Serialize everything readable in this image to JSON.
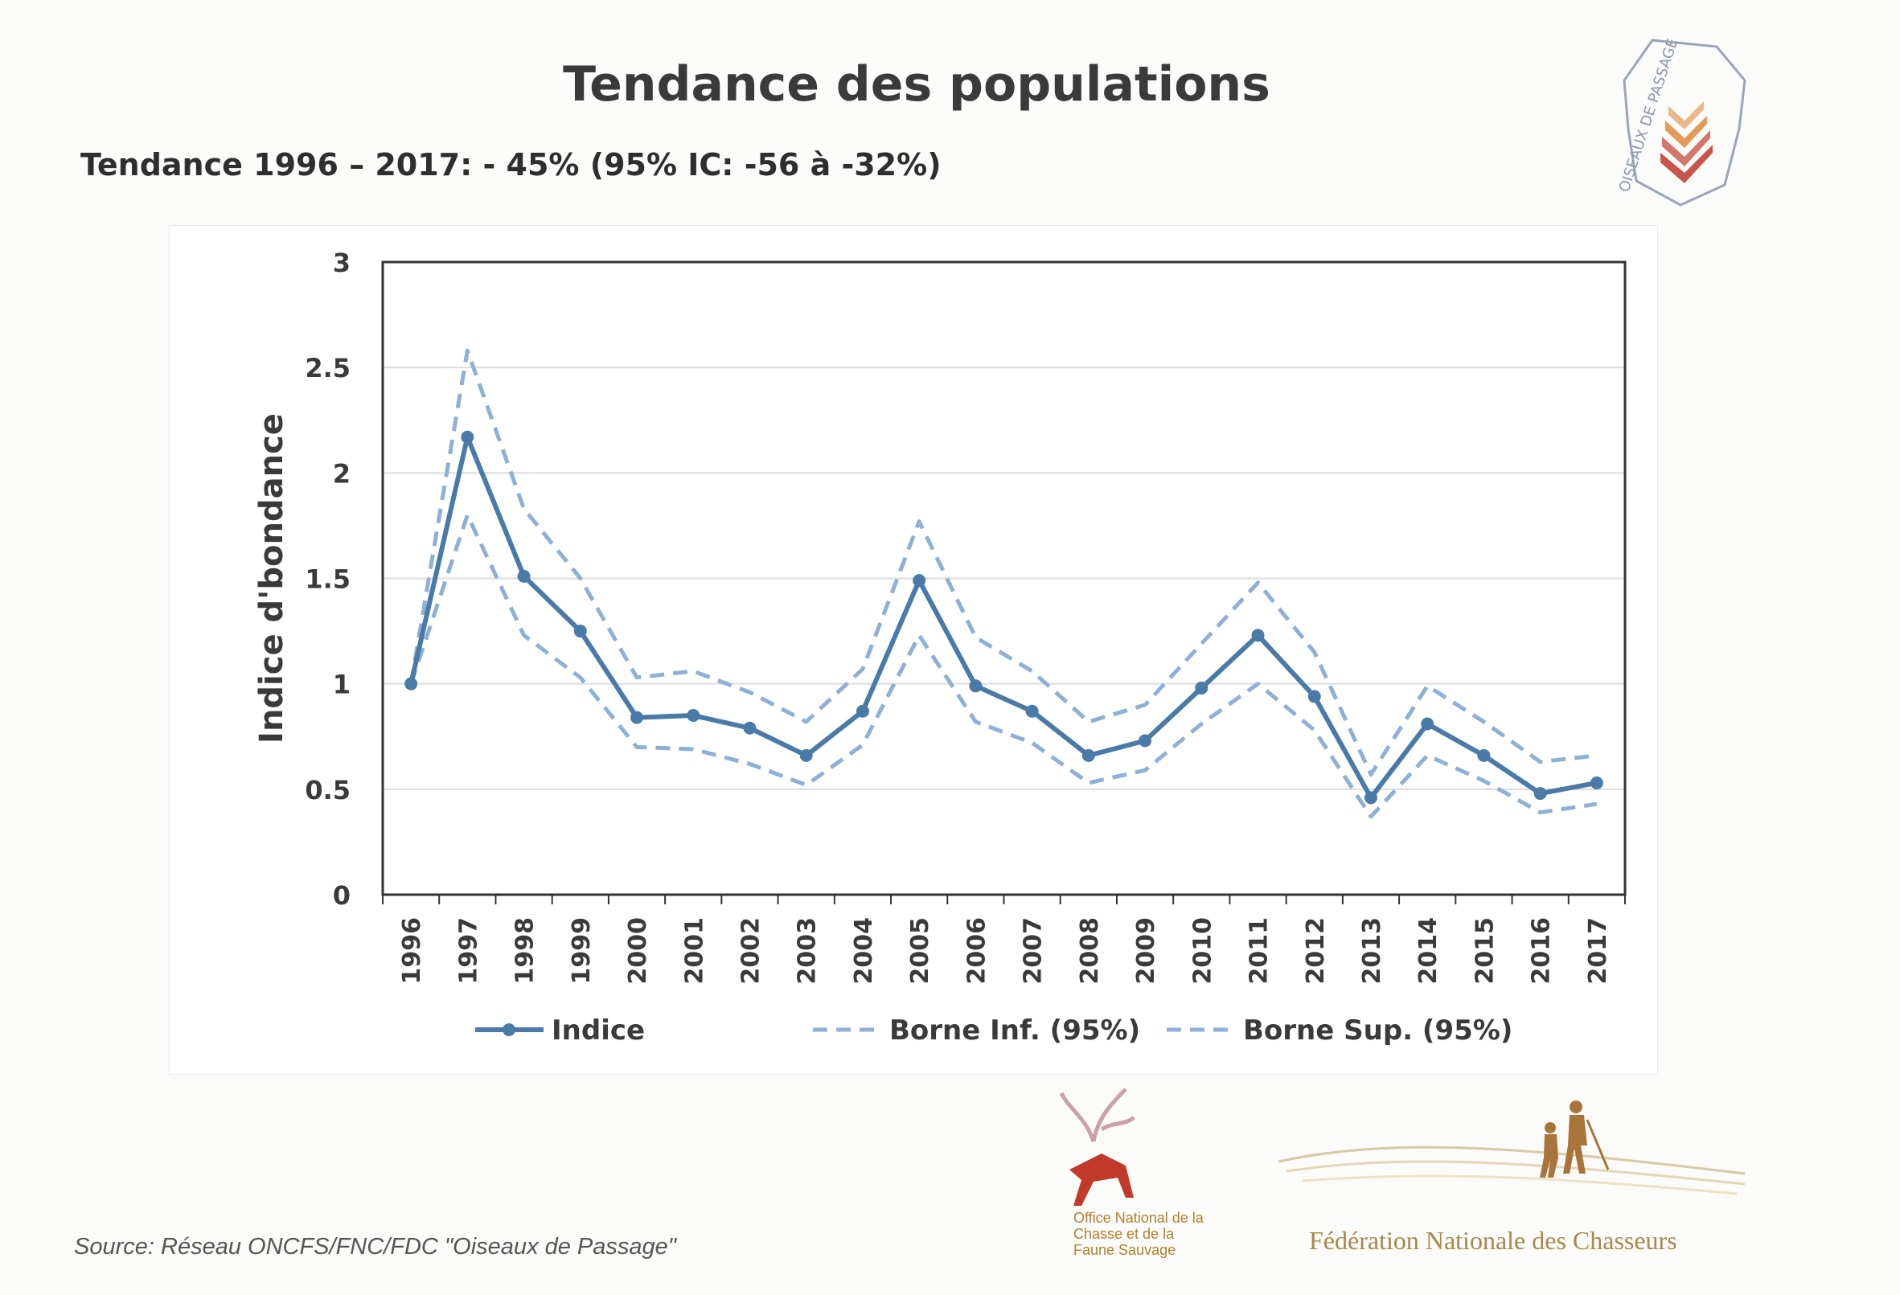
{
  "header": {
    "title": "Tendance des populations",
    "subtitle": "Tendance 1996 – 2017: -  45% (95% IC: -56 à -32%)"
  },
  "footer": {
    "source": "Source: Réseau ONCFS/FNC/FDC  \"Oiseaux de Passage\"",
    "oncfs_logo_text": "Office National de la Chasse et de la Faune Sauvage",
    "fnc_logo_text": "Fédération Nationale des Chasseurs",
    "top_logo_text": "OISEAUX DE PASSAGE"
  },
  "chart_data": {
    "type": "line",
    "title": "",
    "xlabel": "",
    "ylabel": "Indice d'bondance",
    "ylim": [
      0,
      3
    ],
    "yticks": [
      "0",
      "0.5",
      "1",
      "1.5",
      "2",
      "2.5",
      "3"
    ],
    "grid": true,
    "legend_position": "bottom",
    "x": [
      "1996",
      "1997",
      "1998",
      "1999",
      "2000",
      "2001",
      "2002",
      "2003",
      "2004",
      "2005",
      "2006",
      "2007",
      "2008",
      "2009",
      "2010",
      "2011",
      "2012",
      "2013",
      "2014",
      "2015",
      "2016",
      "2017"
    ],
    "series": [
      {
        "name": "Indice",
        "style": "solid",
        "color": "#4a7aa8",
        "values": [
          1.0,
          2.17,
          1.51,
          1.25,
          0.84,
          0.85,
          0.79,
          0.66,
          0.87,
          1.49,
          0.99,
          0.87,
          0.66,
          0.73,
          0.98,
          1.23,
          0.94,
          0.46,
          0.81,
          0.66,
          0.48,
          0.53
        ]
      },
      {
        "name": "Borne Inf. (95%)",
        "style": "dashed",
        "color": "#8fb0d6",
        "values": [
          1.0,
          1.8,
          1.23,
          1.03,
          0.7,
          0.69,
          0.62,
          0.52,
          0.71,
          1.23,
          0.82,
          0.72,
          0.53,
          0.59,
          0.81,
          1.0,
          0.78,
          0.37,
          0.66,
          0.54,
          0.39,
          0.43
        ]
      },
      {
        "name": "Borne Sup. (95%)",
        "style": "dashed",
        "color": "#8fb0d6",
        "values": [
          1.0,
          2.58,
          1.83,
          1.5,
          1.03,
          1.06,
          0.96,
          0.82,
          1.07,
          1.77,
          1.22,
          1.06,
          0.82,
          0.9,
          1.19,
          1.48,
          1.15,
          0.57,
          0.99,
          0.82,
          0.63,
          0.66
        ]
      }
    ]
  }
}
